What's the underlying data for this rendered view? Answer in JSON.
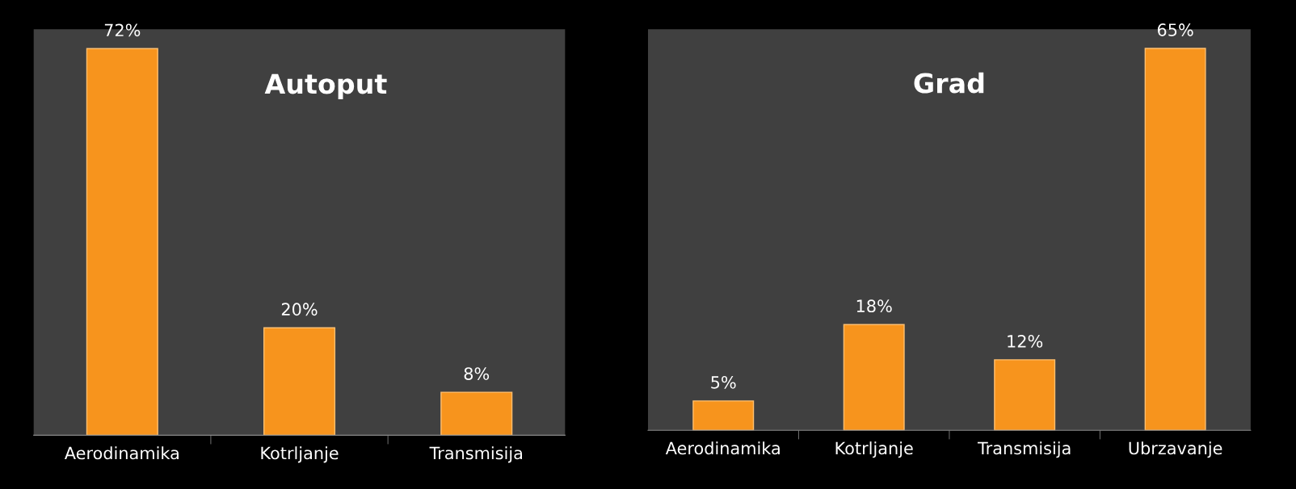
{
  "chart_data": [
    {
      "type": "bar",
      "title": "Autoput",
      "categories": [
        "Aerodinamika",
        "Kotrljanje",
        "Transmisija"
      ],
      "values": [
        72,
        20,
        8
      ],
      "value_labels": [
        "72%",
        "20%",
        "8%"
      ],
      "color": "#f7941d",
      "grid": false,
      "legend": false
    },
    {
      "type": "bar",
      "title": "Grad",
      "categories": [
        "Aerodinamika",
        "Kotrljanje",
        "Transmisija",
        "Ubrzavanje"
      ],
      "values": [
        5,
        18,
        12,
        65
      ],
      "value_labels": [
        "5%",
        "18%",
        "12%",
        "65%"
      ],
      "color": "#f7941d",
      "grid": false,
      "legend": false
    }
  ]
}
